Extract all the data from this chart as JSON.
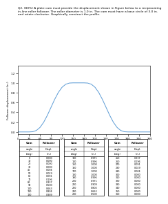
{
  "title_text": "Q2. (80%) A plate cam must provide the displacement shown in Figure below to a reciprocating\nin-line roller follower. The roller diameter is 1.0 in. The cam must have a base circle of 3.0 in.\nand rotate clockwise. Graphically construct the profile.",
  "cam_angles": [
    0,
    10,
    20,
    30,
    40,
    50,
    60,
    70,
    80,
    90,
    100,
    110,
    120,
    130,
    140,
    150,
    160,
    170,
    180,
    190,
    200,
    210,
    220,
    230,
    240,
    250,
    260,
    270,
    280,
    290,
    300,
    310,
    320,
    330,
    340,
    350,
    360
  ],
  "displacements": [
    0.0,
    0.0,
    0.0,
    0.0,
    0.004,
    0.029,
    0.091,
    0.196,
    0.337,
    0.5,
    0.663,
    0.804,
    0.909,
    0.971,
    0.996,
    1.0,
    1.0,
    1.0,
    1.0,
    0.996,
    0.971,
    0.909,
    0.804,
    0.663,
    0.5,
    0.337,
    0.196,
    0.091,
    0.029,
    0.004,
    0.0,
    0.0,
    0.0,
    0.0,
    0.0,
    0.0,
    0.0
  ],
  "xlabel": "Cam angle (deg)",
  "ylabel": "Follower displacement (in.)",
  "yticks": [
    0.0,
    0.2,
    0.4,
    0.6,
    0.8,
    1.0,
    1.2
  ],
  "xticks": [
    0,
    30,
    60,
    90,
    120,
    150,
    180,
    210,
    240,
    270,
    300,
    330,
    360
  ],
  "line_color": "#5b9bd5",
  "table_col1": {
    "cam_angles": [
      0,
      10,
      20,
      30,
      40,
      50,
      60,
      70,
      80,
      90,
      100,
      110,
      120
    ],
    "displacements": [
      "0.000",
      "0.000",
      "0.000",
      "0.000",
      "0.004",
      "0.029",
      "0.091",
      "0.196",
      "0.337",
      "0.500",
      "0.663",
      "0.804",
      "0.909"
    ]
  },
  "table_col2": {
    "cam_angles": [
      130,
      140,
      150,
      160,
      170,
      180,
      190,
      200,
      210,
      220,
      230,
      240
    ],
    "displacements": [
      "0.971",
      "0.996",
      "1.000",
      "1.000",
      "1.000",
      "1.000",
      "0.996",
      "0.971",
      "0.909",
      "0.804",
      "0.663",
      "0.500"
    ]
  },
  "table_col3": {
    "cam_angles": [
      250,
      260,
      270,
      280,
      290,
      300,
      310,
      320,
      330,
      340,
      350,
      360
    ],
    "displacements": [
      "0.337",
      "0.196",
      "0.091",
      "0.029",
      "0.004",
      "0.000",
      "0.000",
      "0.000",
      "0.000",
      "0.000",
      "0.000",
      "0.000"
    ]
  },
  "bg_color": "#ffffff"
}
